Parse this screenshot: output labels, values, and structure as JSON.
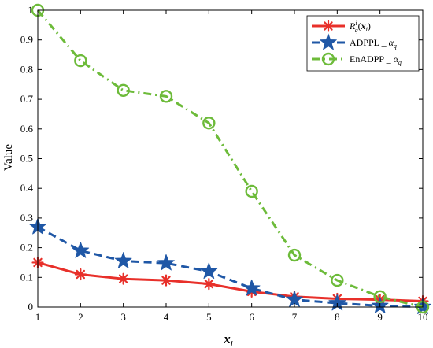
{
  "chart_data": {
    "type": "line",
    "x": [
      1,
      2,
      3,
      4,
      5,
      6,
      7,
      8,
      9,
      10
    ],
    "xlabel": "x",
    "xlabel_sub": "i",
    "ylabel": "Value",
    "xlim": [
      1,
      10
    ],
    "ylim": [
      0,
      1
    ],
    "xticks": [
      "1",
      "2",
      "3",
      "4",
      "5",
      "6",
      "7",
      "8",
      "9",
      "10"
    ],
    "yticks": [
      "0",
      "0.1",
      "0.2",
      "0.3",
      "0.4",
      "0.5",
      "0.6",
      "0.7",
      "0.8",
      "0.9",
      "1"
    ],
    "grid": false,
    "legend_position": "top-right",
    "series": [
      {
        "name": "R_q^i(x_i)",
        "legend": {
          "base": "R",
          "sup": "i",
          "sub": "q",
          "arg": "x",
          "arg_sub": "i"
        },
        "values": [
          0.15,
          0.11,
          0.095,
          0.09,
          0.078,
          0.052,
          0.035,
          0.028,
          0.025,
          0.02
        ],
        "color": "#e8302a",
        "marker": "asterisk",
        "line": "solid"
      },
      {
        "name": "ADPPL_α_q",
        "legend": {
          "base": "ADPPL _",
          "greek": "α",
          "sub": "q"
        },
        "values": [
          0.27,
          0.19,
          0.155,
          0.148,
          0.12,
          0.063,
          0.025,
          0.013,
          0.004,
          0.001
        ],
        "color": "#1f57a6",
        "marker": "star",
        "line": "dashed"
      },
      {
        "name": "EnADPP_α_q",
        "legend": {
          "base": "EnADPP _",
          "greek": "α",
          "sub": "q"
        },
        "values": [
          1.0,
          0.83,
          0.73,
          0.71,
          0.62,
          0.39,
          0.175,
          0.09,
          0.035,
          0.0
        ],
        "color": "#6dbb3a",
        "marker": "circle",
        "line": "dashdot"
      }
    ]
  }
}
